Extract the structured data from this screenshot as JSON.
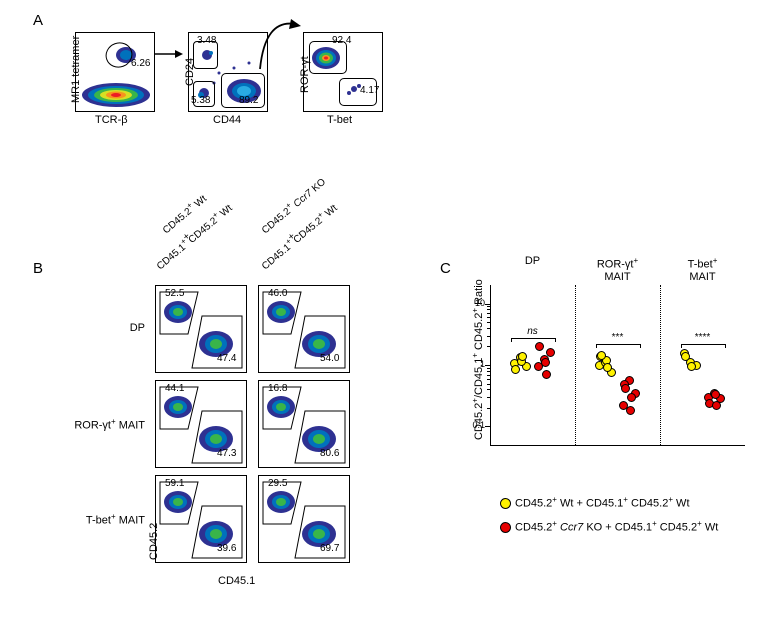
{
  "panels": {
    "A": "A",
    "B": "B",
    "C": "C"
  },
  "panelA": {
    "plot1": {
      "yaxis": "MR1 tetramer",
      "xaxis": "TCR-β",
      "gate_val": "6.26",
      "density_colors": [
        "#2e3192",
        "#0071bc",
        "#39b54a",
        "#d7df23",
        "#f7931e",
        "#ed1c24"
      ]
    },
    "plot2": {
      "yaxis": "CD24",
      "xaxis": "CD44",
      "gate_tl": "3.48",
      "gate_bl": "5.38",
      "gate_br": "89.2",
      "cluster_colors": [
        "#2e3192",
        "#0071bc",
        "#29abe2"
      ]
    },
    "plot3": {
      "yaxis": "ROR-γt",
      "xaxis": "T-bet",
      "gate_top": "92.4",
      "gate_right": "4.17",
      "cluster_colors": [
        "#2e3192",
        "#0071bc",
        "#39b54a",
        "#f7931e",
        "#ed1c24"
      ]
    }
  },
  "panelB": {
    "col1_l1_a": "CD45.2",
    "col1_l1_b": " Wt",
    "plus": "+",
    "col1_l2_a": "CD45.1",
    "col1_l2_b": " CD45.2",
    "col1_l2_c": " Wt",
    "col2_l1_a": "CD45.2",
    "col2_l1_b": " ",
    "col2_l1_c": "Ccr7",
    "col2_l1_d": " KO",
    "col2_l2_a": "CD45.1",
    "col2_l2_b": " CD45.2",
    "col2_l2_c": " Wt",
    "rows": [
      {
        "label_html": "DP",
        "l_top": "52.5",
        "l_bot": "47.4",
        "r_top": "46.0",
        "r_bot": "54.0"
      },
      {
        "label_html": "ROR-γt<span class=\"sup\">+</span> MAIT",
        "l_top": "44.1",
        "l_bot": "47.3",
        "r_top": "16.8",
        "r_bot": "80.6"
      },
      {
        "label_html": "T-bet<span class=\"sup\">+</span> MAIT",
        "l_top": "59.1",
        "l_bot": "39.6",
        "r_top": "29.5",
        "r_bot": "69.7"
      }
    ],
    "yaxis": "CD45.2",
    "xaxis": "CD45.1"
  },
  "panelC": {
    "yaxis_html": "CD45.2<span class=\"sup\">+</span>/CD45.1<span class=\"sup\">+</span> CD45.2<span class=\"sup\">+</span> Ratio",
    "ylim": [
      0.05,
      20
    ],
    "yscale": "log",
    "yticks": [
      {
        "v": 0.1,
        "l": "0.1"
      },
      {
        "v": 1,
        "l": "1"
      },
      {
        "v": 10,
        "l": "10"
      }
    ],
    "groups": [
      {
        "name": "DP",
        "sig": "ns",
        "sig_it": true
      },
      {
        "name_html": "ROR-γt<span class=\"sup\">+</span><br>MAIT",
        "sig": "***"
      },
      {
        "name_html": "T-bet<span class=\"sup\">+</span><br>MAIT",
        "sig": "****"
      }
    ],
    "series": [
      {
        "color": "#fff200",
        "label_html": "CD45.2<span class=\"sup\">+</span> Wt + CD45.1<span class=\"sup\">+</span> CD45.2<span class=\"sup\">+</span> Wt",
        "points": {
          "DP": [
            1.05,
            1.3,
            0.95,
            0.85,
            1.15,
            1.4
          ],
          "ROR": [
            1.0,
            1.1,
            0.75,
            1.35,
            1.2,
            0.9,
            1.45
          ],
          "Tbet": [
            1.55,
            1.1,
            1.0,
            1.35,
            0.95
          ]
        }
      },
      {
        "color": "#e60000",
        "label_html": "CD45.2<span class=\"sup\">+</span> <span class=\"italic\">Ccr7</span> KO + CD45.1<span class=\"sup\">+</span> CD45.2<span class=\"sup\">+</span> Wt",
        "points": {
          "DP": [
            0.95,
            1.25,
            1.6,
            2.0,
            1.1,
            0.7
          ],
          "ROR": [
            0.22,
            0.55,
            0.35,
            0.48,
            0.18,
            0.3,
            0.42
          ],
          "Tbet": [
            0.3,
            0.35,
            0.28,
            0.24,
            0.33,
            0.22
          ]
        }
      }
    ],
    "legend": {
      "yellow": "#fff200",
      "red": "#e60000"
    }
  },
  "style": {
    "font_main": 12,
    "font_axis": 11,
    "font_gate": 10,
    "font_panel": 15,
    "colors": {
      "bg": "#ffffff",
      "fg": "#000000"
    }
  }
}
